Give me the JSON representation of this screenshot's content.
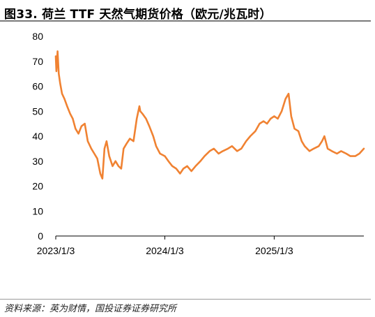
{
  "header": {
    "title": "图33. 荷兰 TTF 天然气期货价格（欧元/兆瓦时）"
  },
  "footer": {
    "source": "资料来源：英为财情，国投证券证券研究所"
  },
  "chart_data": {
    "type": "line",
    "title": "图33. 荷兰 TTF 天然气期货价格（欧元/兆瓦时）",
    "xlabel": "",
    "ylabel": "",
    "ylim": [
      0,
      80
    ],
    "y_ticks": [
      0,
      10,
      20,
      30,
      40,
      50,
      60,
      70,
      80
    ],
    "x_ticks": [
      "2023/1/3",
      "2024/1/3",
      "2025/1/3"
    ],
    "x_range": [
      "2023/1/3",
      "2025/10/30"
    ],
    "grid": false,
    "legend": "none",
    "line_color": "#F08232",
    "series": [
      {
        "name": "",
        "x": [
          "2023/1/3",
          "2023/1/5",
          "2023/1/9",
          "2023/1/13",
          "2023/1/18",
          "2023/1/24",
          "2023/2/1",
          "2023/2/10",
          "2023/2/20",
          "2023/3/1",
          "2023/3/10",
          "2023/3/20",
          "2023/3/30",
          "2023/4/10",
          "2023/4/20",
          "2023/5/2",
          "2023/5/12",
          "2023/5/22",
          "2023/6/1",
          "2023/6/8",
          "2023/6/15",
          "2023/6/22",
          "2023/7/1",
          "2023/7/12",
          "2023/7/22",
          "2023/8/1",
          "2023/8/10",
          "2023/8/18",
          "2023/8/28",
          "2023/9/8",
          "2023/9/20",
          "2023/10/1",
          "2023/10/10",
          "2023/10/13",
          "2023/10/20",
          "2023/11/1",
          "2023/11/12",
          "2023/11/25",
          "2023/12/5",
          "2023/12/18",
          "2024/1/3",
          "2024/1/15",
          "2024/1/28",
          "2024/2/10",
          "2024/2/23",
          "2024/3/5",
          "2024/3/18",
          "2024/4/1",
          "2024/4/15",
          "2024/5/1",
          "2024/5/15",
          "2024/6/1",
          "2024/6/15",
          "2024/7/1",
          "2024/7/15",
          "2024/8/1",
          "2024/8/15",
          "2024/9/1",
          "2024/9/15",
          "2024/10/1",
          "2024/10/15",
          "2024/11/1",
          "2024/11/15",
          "2024/11/28",
          "2024/12/10",
          "2024/12/22",
          "2025/1/3",
          "2025/1/15",
          "2025/1/28",
          "2025/2/10",
          "2025/2/20",
          "2025/3/1",
          "2025/3/12",
          "2025/3/25",
          "2025/4/5",
          "2025/4/15",
          "2025/5/1",
          "2025/5/15",
          "2025/6/1",
          "2025/6/12",
          "2025/6/20",
          "2025/7/1",
          "2025/7/15",
          "2025/8/1",
          "2025/8/15",
          "2025/9/1",
          "2025/9/15",
          "2025/10/1",
          "2025/10/15",
          "2025/10/30"
        ],
        "values": [
          72,
          66,
          74,
          65,
          61,
          57,
          55,
          52,
          49,
          47,
          43,
          41,
          44,
          45,
          38,
          35,
          33,
          31,
          25,
          23,
          35,
          38,
          32,
          28,
          30,
          28,
          27,
          35,
          37,
          39,
          38,
          47,
          52,
          50,
          49,
          47,
          44,
          40,
          36,
          33,
          32,
          30,
          28,
          27,
          25,
          27,
          28,
          26,
          28,
          30,
          32,
          34,
          35,
          33,
          34,
          35,
          36,
          34,
          35,
          38,
          40,
          42,
          45,
          46,
          45,
          47,
          48,
          47,
          50,
          55,
          57,
          48,
          43,
          42,
          38,
          36,
          34,
          35,
          36,
          38,
          40,
          35,
          34,
          33,
          34,
          33,
          32,
          32,
          33,
          35
        ]
      }
    ]
  }
}
